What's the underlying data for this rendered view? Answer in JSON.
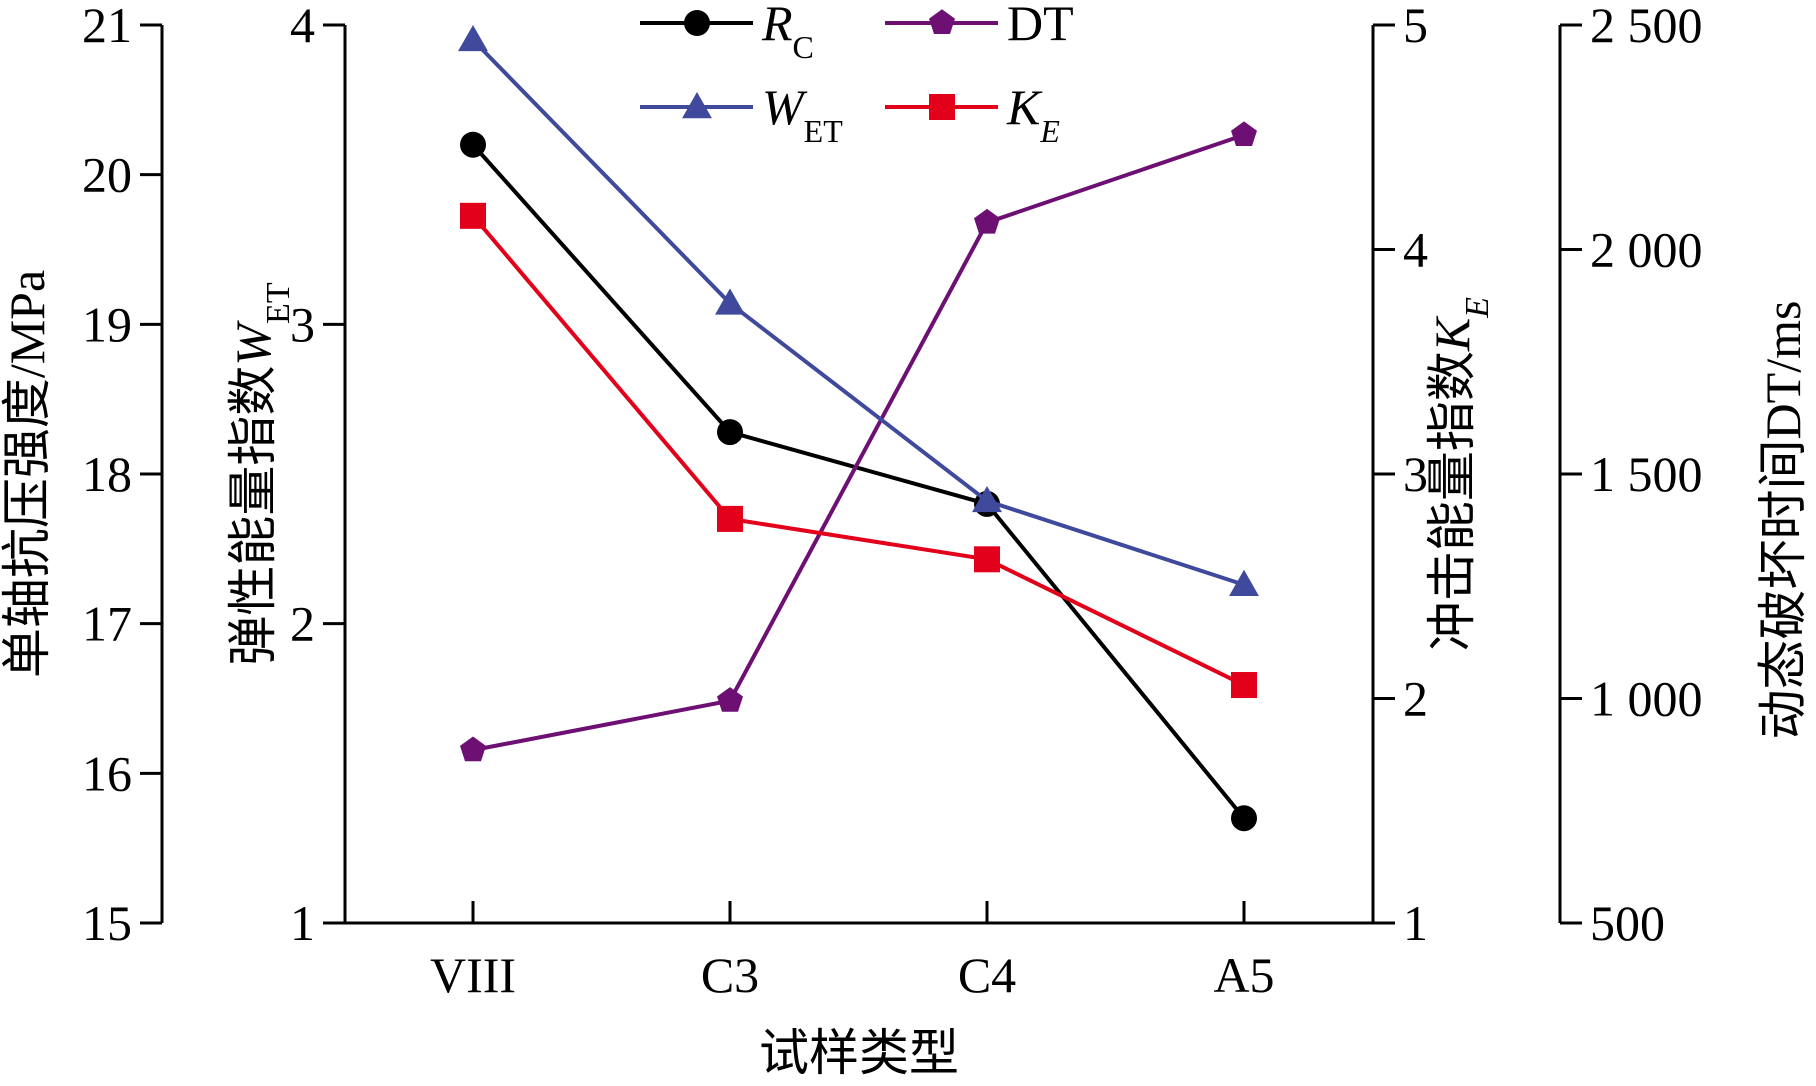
{
  "chart_data": {
    "type": "line",
    "categories": [
      "VIII",
      "C3",
      "C4",
      "A5"
    ],
    "xlabel": "试样类型",
    "axes": {
      "rc": {
        "label": "单轴抗压强度/MPa",
        "min": 15,
        "max": 21,
        "ticks": [
          15,
          16,
          17,
          18,
          19,
          20,
          21
        ],
        "tick_labels": [
          "15",
          "16",
          "17",
          "18",
          "19",
          "20",
          "21"
        ],
        "side": "left-outer"
      },
      "wet": {
        "label": "弹性能量指数",
        "label_symbol": "W",
        "label_sub": "ET",
        "min": 1,
        "max": 4,
        "ticks": [
          1,
          2,
          3,
          4
        ],
        "tick_labels": [
          "1",
          "2",
          "3",
          "4"
        ],
        "side": "left-inner"
      },
      "ke": {
        "label": "冲击能量指数",
        "label_symbol": "K",
        "label_sub": "E",
        "min": 1,
        "max": 5,
        "ticks": [
          1,
          2,
          3,
          4,
          5
        ],
        "tick_labels": [
          "1",
          "2",
          "3",
          "4",
          "5"
        ],
        "side": "right-inner"
      },
      "dt": {
        "label": "动态破坏时间DT/ms",
        "min": 500,
        "max": 2500,
        "ticks": [
          500,
          1000,
          1500,
          2000,
          2500
        ],
        "tick_labels": [
          "500",
          "1 000",
          "1 500",
          "2 000",
          "2 500"
        ],
        "side": "right-outer"
      }
    },
    "series": [
      {
        "key": "rc",
        "name": "R",
        "name_sub": "C",
        "axis": "rc",
        "color": "#000000",
        "marker": "circle",
        "values": [
          20.2,
          18.28,
          17.8,
          15.7
        ]
      },
      {
        "key": "dt",
        "name": "DT",
        "name_sub": "",
        "axis": "dt",
        "color": "#6d0f73",
        "marker": "pentagon",
        "values": [
          885,
          995,
          2060,
          2255
        ]
      },
      {
        "key": "wet",
        "name": "W",
        "name_sub": "ET",
        "axis": "wet",
        "color": "#3f4a9c",
        "marker": "triangle",
        "values": [
          3.95,
          3.07,
          2.41,
          2.13
        ]
      },
      {
        "key": "ke",
        "name": "K",
        "name_sub": "E",
        "axis": "ke",
        "color": "#e2001a",
        "marker": "square",
        "values": [
          4.15,
          2.8,
          2.62,
          2.06
        ]
      }
    ],
    "legend": {
      "position": "top-center",
      "columns": 2
    },
    "grid": false
  }
}
